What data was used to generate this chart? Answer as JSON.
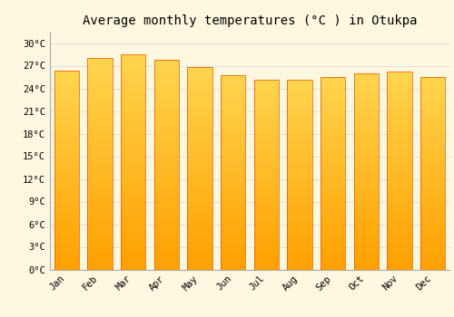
{
  "title": "Average monthly temperatures (°C ) in Otukpa",
  "months": [
    "Jan",
    "Feb",
    "Mar",
    "Apr",
    "May",
    "Jun",
    "Jul",
    "Aug",
    "Sep",
    "Oct",
    "Nov",
    "Dec"
  ],
  "values": [
    26.3,
    28.0,
    28.5,
    27.8,
    26.8,
    25.8,
    25.2,
    25.2,
    25.5,
    26.0,
    26.2,
    25.5
  ],
  "bar_color_top": "#FFD54F",
  "bar_color_bottom": "#FFA000",
  "bar_edge_color": "#E65100",
  "background_color": "#FFF8E1",
  "grid_color": "#E0E0E0",
  "yticks": [
    0,
    3,
    6,
    9,
    12,
    15,
    18,
    21,
    24,
    27,
    30
  ],
  "ylim": [
    0,
    31.5
  ],
  "title_fontsize": 10,
  "tick_fontsize": 7.5,
  "font_family": "monospace",
  "bar_width": 0.75
}
